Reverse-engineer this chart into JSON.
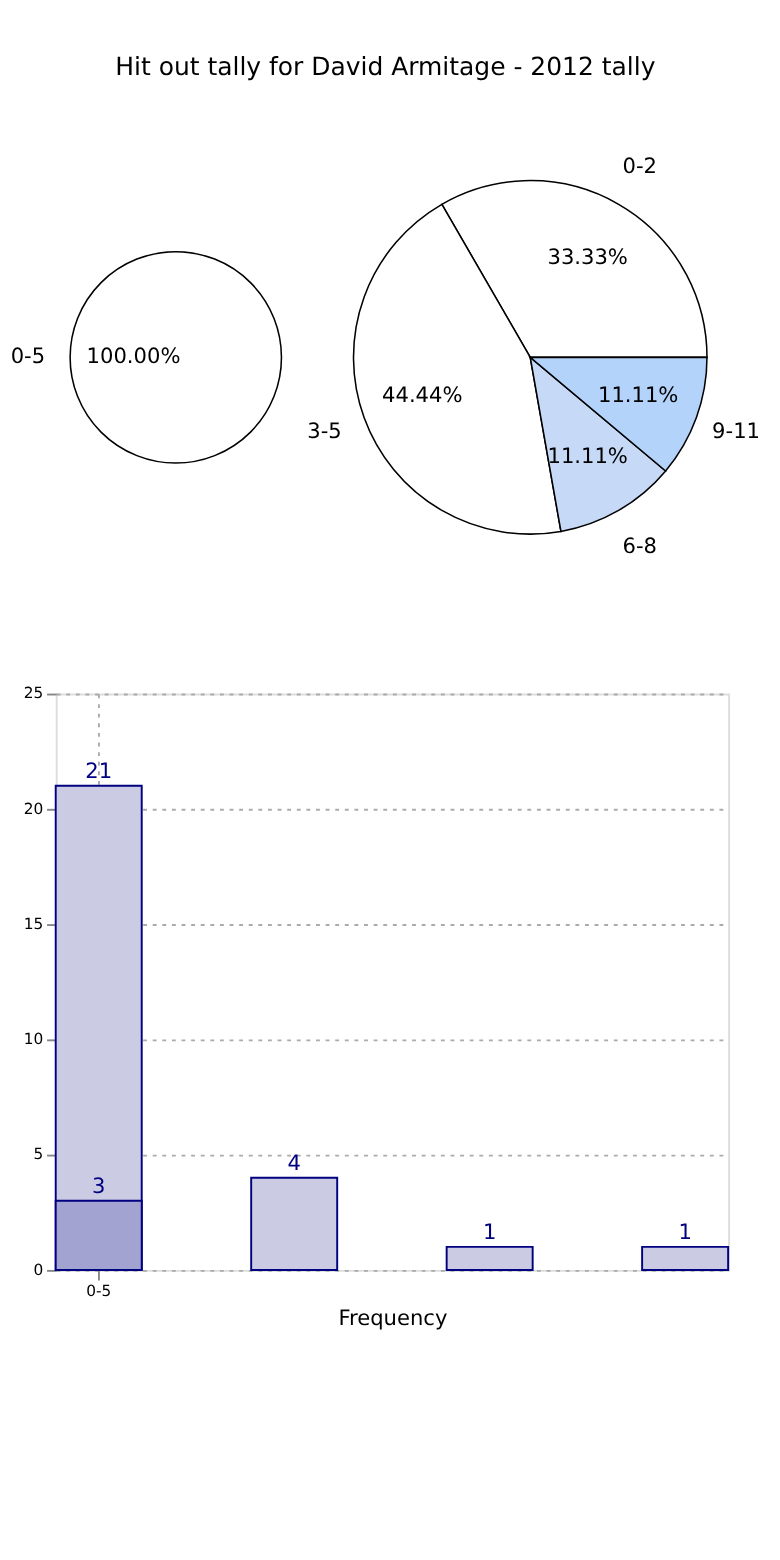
{
  "chart_data": [
    {
      "type": "pie",
      "title": "Hit out tally for David Armitage - 2012 tally",
      "categories": [
        "0-2",
        "3-5",
        "6-8",
        "9-11"
      ],
      "values": [
        33.33,
        44.44,
        11.11,
        11.11
      ],
      "colors": [
        "#ffffff",
        "#ffffff",
        "#c6d9f7",
        "#b3d3fb"
      ],
      "value_labels": [
        "33.33%",
        "44.44%",
        "11.11%",
        "11.11%"
      ]
    },
    {
      "type": "pie",
      "categories": [
        "0-5"
      ],
      "values": [
        100
      ],
      "colors": [
        "#ffffff"
      ],
      "value_labels": [
        "100.00%"
      ]
    },
    {
      "type": "bar",
      "xlabel": "Frequency",
      "categories": [
        "0-5",
        null,
        null,
        null
      ],
      "series": [
        {
          "color": "#cbcbe4",
          "values": [
            21,
            4,
            1,
            1
          ]
        },
        {
          "color": "#a3a3d1",
          "values": [
            3,
            null,
            null,
            null
          ]
        }
      ],
      "ylim": [
        0,
        25
      ],
      "yticks": [
        0,
        5,
        10,
        15,
        20,
        25
      ],
      "grid": true,
      "data_labels": true
    }
  ]
}
